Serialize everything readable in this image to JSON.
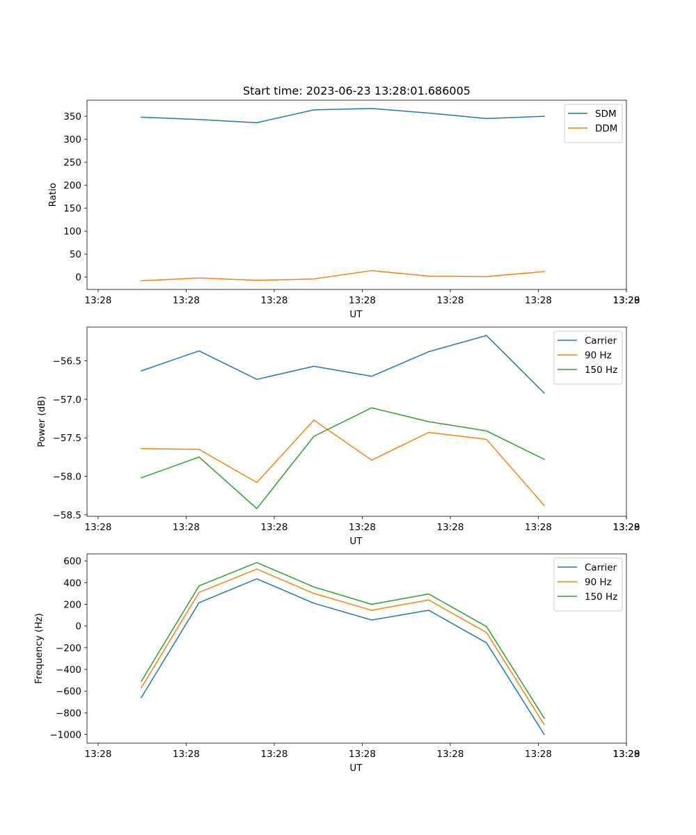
{
  "figure_title": "Start time: 2023-06-23 13:28:01.686005",
  "colors": {
    "series1": "#1f77b4",
    "series2": "#ff7f0e",
    "series3": "#2ca02c"
  },
  "chart_data": [
    {
      "type": "line",
      "title": "Start time: 2023-06-23 13:28:01.686005",
      "xlabel": "UT",
      "ylabel": "Ratio",
      "x_tick_labels": [
        "13:28",
        "13:28",
        "13:28",
        "13:28",
        "13:28",
        "13:28",
        "13:28",
        "13:29"
      ],
      "ylim": [
        -27,
        385
      ],
      "y_ticks": [
        0,
        50,
        100,
        150,
        200,
        250,
        300,
        350
      ],
      "y_tick_labels": [
        "0",
        "50",
        "100",
        "150",
        "200",
        "250",
        "300",
        "350"
      ],
      "legend": "top-right",
      "series": [
        {
          "name": "SDM",
          "color": "#1f77b4",
          "values": [
            348,
            343,
            336,
            364,
            367,
            357,
            345,
            350
          ]
        },
        {
          "name": "DDM",
          "color": "#ff7f0e",
          "values": [
            -8,
            -2,
            -7,
            -4,
            14,
            2,
            1,
            12
          ]
        }
      ]
    },
    {
      "type": "line",
      "title": "",
      "xlabel": "UT",
      "ylabel": "Power (dB)",
      "x_tick_labels": [
        "13:28",
        "13:28",
        "13:28",
        "13:28",
        "13:28",
        "13:28",
        "13:28",
        "13:29"
      ],
      "ylim": [
        -58.52,
        -56.06
      ],
      "y_ticks": [
        -58.5,
        -58.0,
        -57.5,
        -57.0,
        -56.5
      ],
      "y_tick_labels": [
        "−58.5",
        "−58.0",
        "−57.5",
        "−57.0",
        "−56.5"
      ],
      "legend": "top-right",
      "series": [
        {
          "name": "Carrier",
          "color": "#1f77b4",
          "values": [
            -56.63,
            -56.37,
            -56.74,
            -56.57,
            -56.7,
            -56.38,
            -56.17,
            -56.92
          ]
        },
        {
          "name": "90 Hz",
          "color": "#ff7f0e",
          "values": [
            -57.64,
            -57.65,
            -58.08,
            -57.27,
            -57.79,
            -57.43,
            -57.52,
            -58.38
          ]
        },
        {
          "name": "150 Hz",
          "color": "#2ca02c",
          "values": [
            -58.02,
            -57.75,
            -58.42,
            -57.48,
            -57.11,
            -57.29,
            -57.41,
            -57.78
          ]
        }
      ]
    },
    {
      "type": "line",
      "title": "",
      "xlabel": "UT",
      "ylabel": "Frequency (Hz)",
      "x_tick_labels": [
        "13:28",
        "13:28",
        "13:28",
        "13:28",
        "13:28",
        "13:28",
        "13:28",
        "13:29"
      ],
      "ylim": [
        -1080,
        665
      ],
      "y_ticks": [
        -1000,
        -800,
        -600,
        -400,
        -200,
        0,
        200,
        400,
        600
      ],
      "y_tick_labels": [
        "−1000",
        "−800",
        "−600",
        "−400",
        "−200",
        "0",
        "200",
        "400",
        "600"
      ],
      "legend": "top-right",
      "series": [
        {
          "name": "Carrier",
          "color": "#1f77b4",
          "values": [
            -660,
            215,
            435,
            210,
            55,
            145,
            -155,
            -1000
          ]
        },
        {
          "name": "90 Hz",
          "color": "#ff7f0e",
          "values": [
            -570,
            310,
            525,
            300,
            145,
            240,
            -60,
            -910
          ]
        },
        {
          "name": "150 Hz",
          "color": "#2ca02c",
          "values": [
            -510,
            370,
            585,
            360,
            200,
            295,
            -5,
            -850
          ]
        }
      ]
    }
  ]
}
